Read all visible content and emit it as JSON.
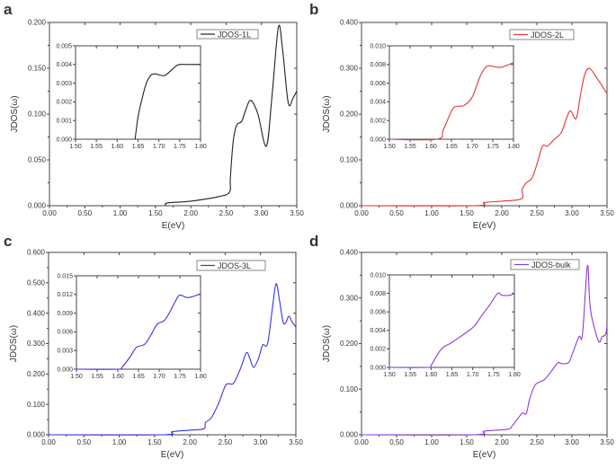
{
  "chart_data": [
    {
      "panel": "a",
      "type": "line",
      "xlabel": "E(eV)",
      "ylabel": "JDOS(ω)",
      "xlim": [
        0,
        3.5
      ],
      "ylim": [
        0,
        0.2
      ],
      "xticks": [
        "0.00",
        "0.50",
        "1.00",
        "1.50",
        "2.00",
        "2.50",
        "3.00",
        "3.50"
      ],
      "yticks": [
        "0.000",
        "0.050",
        "0.100",
        "0.150",
        "0.200"
      ],
      "legend": "top-right",
      "grid": false,
      "series": [
        {
          "name": "JDOS-1L",
          "color": "#222222",
          "x": [
            1.65,
            1.67,
            2.0,
            2.4,
            2.55,
            2.56,
            2.6,
            2.65,
            2.72,
            2.78,
            2.85,
            2.95,
            3.07,
            3.15,
            3.24,
            3.3,
            3.38,
            3.45,
            3.5
          ],
          "y": [
            0,
            0.003,
            0.005,
            0.01,
            0.015,
            0.03,
            0.07,
            0.088,
            0.092,
            0.105,
            0.115,
            0.1,
            0.065,
            0.12,
            0.195,
            0.17,
            0.112,
            0.118,
            0.125
          ]
        }
      ],
      "inset": {
        "xlim": [
          1.5,
          1.8
        ],
        "ylim": [
          0,
          0.005
        ],
        "xticks": [
          "1.50",
          "1.55",
          "1.60",
          "1.65",
          "1.70",
          "1.75",
          "1.80"
        ],
        "yticks": [
          "0.000",
          "0.001",
          "0.002",
          "0.003",
          "0.004",
          "0.005"
        ],
        "x": [
          1.643,
          1.65,
          1.66,
          1.67,
          1.68,
          1.69,
          1.71,
          1.72,
          1.74,
          1.75,
          1.77,
          1.8
        ],
        "y": [
          0,
          0.0012,
          0.0022,
          0.003,
          0.0034,
          0.0035,
          0.0034,
          0.0035,
          0.0039,
          0.004,
          0.004,
          0.004
        ]
      }
    },
    {
      "panel": "b",
      "type": "line",
      "xlabel": "E(eV)",
      "ylabel": "JDOS(ω)",
      "xlim": [
        0,
        3.5
      ],
      "ylim": [
        0,
        0.4
      ],
      "xticks": [
        "0.00",
        "0.50",
        "1.00",
        "1.50",
        "2.00",
        "2.50",
        "3.00",
        "3.50"
      ],
      "yticks": [
        "0.000",
        "0.100",
        "0.200",
        "0.300",
        "0.400"
      ],
      "legend": "top-right",
      "grid": false,
      "series": [
        {
          "name": "JDOS-2L",
          "color": "#e33535",
          "x": [
            0,
            1.6,
            1.75,
            2.0,
            2.28,
            2.29,
            2.35,
            2.43,
            2.5,
            2.58,
            2.65,
            2.75,
            2.85,
            2.92,
            2.98,
            3.06,
            3.12,
            3.18,
            3.25,
            3.35,
            3.5
          ],
          "y": [
            0,
            0,
            0.007,
            0.01,
            0.015,
            0.035,
            0.05,
            0.06,
            0.09,
            0.13,
            0.13,
            0.145,
            0.16,
            0.19,
            0.207,
            0.19,
            0.24,
            0.285,
            0.3,
            0.28,
            0.245
          ]
        }
      ],
      "inset": {
        "xlim": [
          1.5,
          1.8
        ],
        "ylim": [
          0,
          0.01
        ],
        "xticks": [
          "1.50",
          "1.55",
          "1.60",
          "1.65",
          "1.70",
          "1.75",
          "1.80"
        ],
        "yticks": [
          "0.000",
          "0.002",
          "0.004",
          "0.006",
          "0.008",
          "0.010"
        ],
        "x": [
          1.5,
          1.615,
          1.63,
          1.65,
          1.66,
          1.68,
          1.7,
          1.72,
          1.735,
          1.75,
          1.77,
          1.8
        ],
        "y": [
          0,
          0,
          0.001,
          0.003,
          0.0035,
          0.0036,
          0.0045,
          0.0068,
          0.0078,
          0.0078,
          0.0077,
          0.0082
        ]
      }
    },
    {
      "panel": "c",
      "type": "line",
      "xlabel": "E(eV)",
      "ylabel": "JDOS(ω)",
      "xlim": [
        0,
        3.5
      ],
      "ylim": [
        0,
        0.6
      ],
      "xticks": [
        "0.00",
        "0.50",
        "1.00",
        "1.50",
        "2.00",
        "2.50",
        "3.00",
        "3.50"
      ],
      "yticks": [
        "0.000",
        "0.100",
        "0.200",
        "0.300",
        "0.400",
        "0.500",
        "0.600"
      ],
      "legend": "top-right",
      "grid": false,
      "series": [
        {
          "name": "JDOS-3L",
          "color": "#3535e0",
          "x": [
            0,
            1.6,
            1.75,
            2.0,
            2.2,
            2.22,
            2.3,
            2.4,
            2.5,
            2.55,
            2.62,
            2.72,
            2.8,
            2.85,
            2.9,
            2.97,
            3.03,
            3.1,
            3.17,
            3.22,
            3.27,
            3.32,
            3.36,
            3.4,
            3.45,
            3.5
          ],
          "y": [
            0,
            0,
            0.01,
            0.015,
            0.02,
            0.04,
            0.055,
            0.1,
            0.16,
            0.168,
            0.17,
            0.22,
            0.27,
            0.25,
            0.222,
            0.25,
            0.295,
            0.3,
            0.42,
            0.497,
            0.44,
            0.37,
            0.37,
            0.39,
            0.37,
            0.355
          ]
        }
      ],
      "inset": {
        "xlim": [
          1.5,
          1.8
        ],
        "ylim": [
          0,
          0.015
        ],
        "xticks": [
          "1.50",
          "1.55",
          "1.60",
          "1.65",
          "1.70",
          "1.75",
          "1.80"
        ],
        "yticks": [
          "0.000",
          "0.003",
          "0.006",
          "0.009",
          "0.012",
          "0.015"
        ],
        "x": [
          1.5,
          1.6,
          1.61,
          1.63,
          1.645,
          1.665,
          1.68,
          1.695,
          1.71,
          1.72,
          1.74,
          1.75,
          1.77,
          1.8
        ],
        "y": [
          0,
          0,
          0.0003,
          0.002,
          0.0035,
          0.004,
          0.0055,
          0.0072,
          0.0077,
          0.0085,
          0.011,
          0.0119,
          0.0115,
          0.0121
        ]
      }
    },
    {
      "panel": "d",
      "type": "line",
      "xlabel": "E(eV)",
      "ylabel": "JDOS(ω)",
      "xlim": [
        0,
        3.5
      ],
      "ylim": [
        0,
        0.4
      ],
      "xticks": [
        "0.00",
        "0.50",
        "1.00",
        "1.50",
        "2.00",
        "2.50",
        "3.00",
        "3.50"
      ],
      "yticks": [
        "0.000",
        "0.100",
        "0.200",
        "0.300",
        "0.400"
      ],
      "legend": "top-right",
      "grid": false,
      "series": [
        {
          "name": "JDOS-bulk",
          "color": "#8a3cdd",
          "x": [
            0,
            1.6,
            1.75,
            2.08,
            2.15,
            2.2,
            2.25,
            2.3,
            2.35,
            2.4,
            2.48,
            2.6,
            2.7,
            2.8,
            2.85,
            2.95,
            3.0,
            3.1,
            3.15,
            3.22,
            3.25,
            3.28,
            3.38,
            3.43,
            3.48,
            3.5
          ],
          "y": [
            0,
            0,
            0.008,
            0.012,
            0.02,
            0.03,
            0.04,
            0.048,
            0.047,
            0.08,
            0.11,
            0.12,
            0.138,
            0.158,
            0.156,
            0.158,
            0.175,
            0.215,
            0.22,
            0.37,
            0.3,
            0.26,
            0.205,
            0.215,
            0.22,
            0.24
          ]
        }
      ],
      "inset": {
        "xlim": [
          1.5,
          1.8
        ],
        "ylim": [
          0,
          0.01
        ],
        "xticks": [
          "1.50",
          "1.55",
          "1.60",
          "1.65",
          "1.70",
          "1.75",
          "1.80"
        ],
        "yticks": [
          "0.000",
          "0.002",
          "0.004",
          "0.006",
          "0.008",
          "0.010"
        ],
        "x": [
          1.5,
          1.595,
          1.6,
          1.625,
          1.65,
          1.7,
          1.72,
          1.74,
          1.76,
          1.77,
          1.79,
          1.8
        ],
        "y": [
          0,
          0,
          0.0002,
          0.002,
          0.0027,
          0.0043,
          0.0055,
          0.0067,
          0.008,
          0.0078,
          0.0078,
          0.008
        ]
      }
    }
  ]
}
